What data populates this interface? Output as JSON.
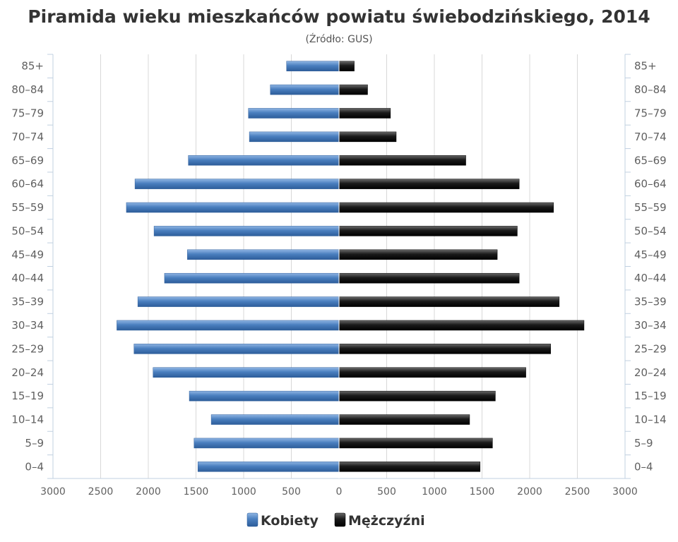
{
  "chart_data": {
    "type": "bar",
    "orientation": "horizontal",
    "layout": "population-pyramid",
    "title": "Piramida wieku mieszkańców powiatu świebodzińskiego, 2014",
    "subtitle": "(Źródło: GUS)",
    "categories": [
      "85+",
      "80–84",
      "75–79",
      "70–74",
      "65–69",
      "60–64",
      "55–59",
      "50–54",
      "45–49",
      "40–44",
      "35–39",
      "30–34",
      "25–29",
      "20–24",
      "15–19",
      "10–14",
      "5–9",
      "0–4"
    ],
    "series": [
      {
        "name": "Kobiety",
        "side": "left",
        "color": "#4a7fbf",
        "values": [
          550,
          720,
          950,
          940,
          1580,
          2140,
          2230,
          1940,
          1590,
          1830,
          2110,
          2330,
          2150,
          1950,
          1570,
          1340,
          1520,
          1480
        ]
      },
      {
        "name": "Mężczyźni",
        "side": "right",
        "color": "#1a1a1a",
        "values": [
          160,
          300,
          540,
          600,
          1330,
          1890,
          2250,
          1870,
          1660,
          1890,
          2310,
          2570,
          2220,
          1960,
          1640,
          1370,
          1610,
          1480
        ]
      }
    ],
    "xlim": [
      -3000,
      3000
    ],
    "xticks": [
      -3000,
      -2500,
      -2000,
      -1500,
      -1000,
      -500,
      0,
      500,
      1000,
      1500,
      2000,
      2500,
      3000
    ],
    "xtick_labels": [
      "3000",
      "2500",
      "2000",
      "1500",
      "1000",
      "500",
      "0",
      "500",
      "1000",
      "1500",
      "2000",
      "2500",
      "3000"
    ],
    "grid": true,
    "legend_position": "bottom-center"
  }
}
